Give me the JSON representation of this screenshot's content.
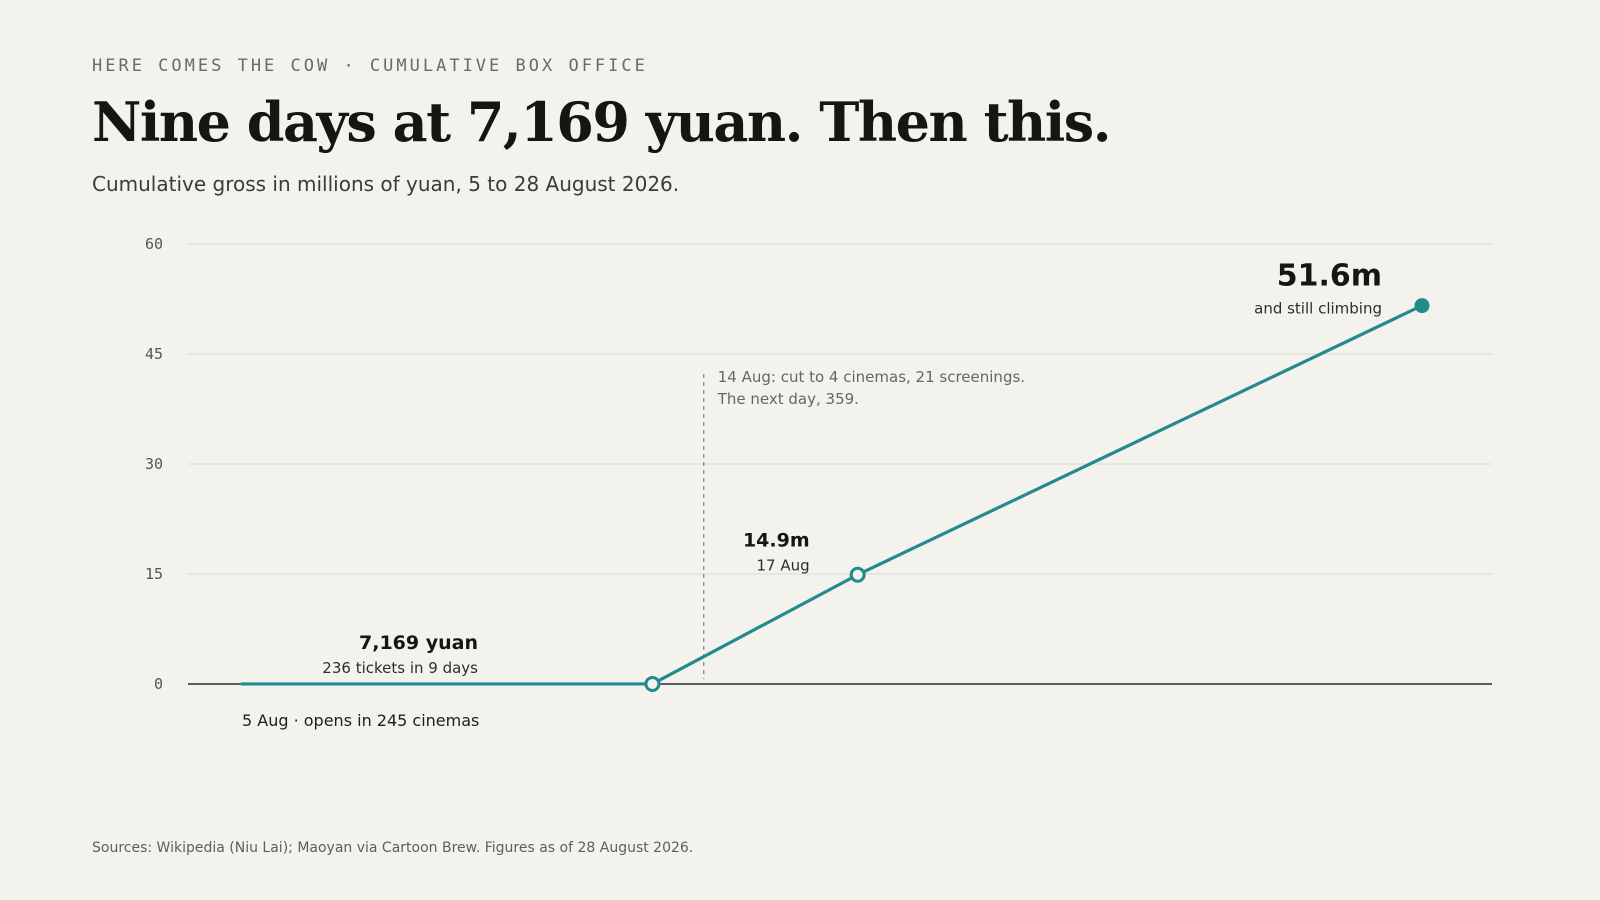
{
  "kicker": "HERE COMES THE COW · CUMULATIVE BOX OFFICE",
  "title": "Nine days at 7,169 yuan. Then this.",
  "subtitle": "Cumulative gross in millions of yuan, 5 to 28 August 2026.",
  "source": "Sources: Wikipedia (Niu Lai); Maoyan via Cartoon Brew. Figures as of 28 August 2026.",
  "colors": {
    "line": "#238a8d",
    "background": "#f3f2ed",
    "grid": "#e2e0da",
    "baseline": "#2a2a2a"
  },
  "chart_data": {
    "type": "line",
    "title": "Nine days at 7,169 yuan. Then this.",
    "subtitle": "Cumulative gross in millions of yuan, 5 to 28 August 2026.",
    "xlabel": "",
    "ylabel": "",
    "ylim": [
      0,
      60
    ],
    "yticks": [
      0,
      15,
      30,
      45,
      60
    ],
    "ytick_labels": [
      "0",
      "15",
      "30",
      "45",
      "60"
    ],
    "grid": true,
    "series": [
      {
        "x": [
          "2026-08-05",
          "2026-08-13",
          "2026-08-17",
          "2026-08-28"
        ],
        "y": [
          0.007169,
          0.007169,
          14.9,
          51.6
        ]
      }
    ],
    "marked_points": [
      "2026-08-13",
      "2026-08-17",
      "2026-08-28"
    ],
    "event_line_date": "2026-08-14",
    "annotations": {
      "start": {
        "date_text": "5 Aug · opens in 245 cinemas"
      },
      "flat": {
        "value_text": "7,169 yuan",
        "detail_text": "236 tickets in 9 days"
      },
      "event": {
        "line1": "14 Aug: cut to 4 cinemas, 21 screenings.",
        "line2": "The next day, 359."
      },
      "mid": {
        "value_text": "14.9m",
        "date_text": "17 Aug"
      },
      "end": {
        "value_text": "51.6m",
        "detail_text": "and still climbing"
      }
    }
  }
}
